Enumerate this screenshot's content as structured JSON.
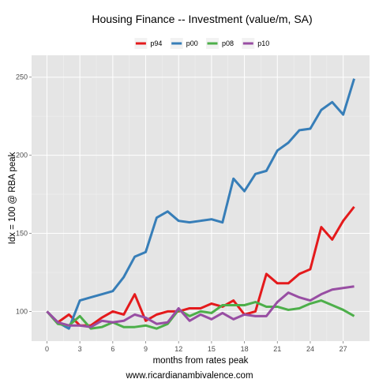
{
  "chart_data": {
    "type": "line",
    "title": "Housing Finance -- Investment (value/m, SA)",
    "xlabel": "months from rates peak",
    "ylabel": "Idx = 100 @ RBA peak",
    "caption": "www.ricardianambivalence.com",
    "x": [
      0,
      1,
      2,
      3,
      4,
      5,
      6,
      7,
      8,
      9,
      10,
      11,
      12,
      13,
      14,
      15,
      16,
      17,
      18,
      19,
      20,
      21,
      22,
      23,
      24,
      25,
      26,
      27,
      28
    ],
    "xlim": [
      -1.4,
      29.4
    ],
    "ylim": [
      81,
      264
    ],
    "x_ticks": [
      0,
      3,
      6,
      9,
      12,
      15,
      18,
      21,
      24,
      27
    ],
    "y_ticks": [
      100,
      150,
      200,
      250
    ],
    "grid": true,
    "legend_position": "top",
    "series": [
      {
        "name": "p94",
        "color": "#e41a1c",
        "values": [
          100,
          93,
          98,
          91,
          91,
          96,
          100,
          98,
          111,
          94,
          98,
          100,
          100,
          102,
          102,
          105,
          103,
          107,
          98,
          100,
          124,
          118,
          118,
          124,
          127,
          154,
          146,
          158,
          167
        ]
      },
      {
        "name": "p00",
        "color": "#377eb8",
        "values": [
          100,
          93,
          89,
          107,
          109,
          111,
          113,
          122,
          135,
          138,
          160,
          164,
          158,
          157,
          158,
          159,
          157,
          185,
          177,
          188,
          190,
          203,
          208,
          216,
          217,
          229,
          234,
          226,
          249
        ]
      },
      {
        "name": "p08",
        "color": "#4daf4a",
        "values": [
          100,
          92,
          91,
          97,
          89,
          90,
          93,
          90,
          90,
          91,
          89,
          92,
          101,
          97,
          100,
          99,
          104,
          104,
          104,
          106,
          103,
          103,
          101,
          102,
          105,
          107,
          104,
          101,
          97
        ]
      },
      {
        "name": "p10",
        "color": "#984ea3",
        "values": [
          100,
          93,
          91,
          91,
          90,
          94,
          93,
          94,
          98,
          96,
          92,
          93,
          102,
          94,
          98,
          95,
          99,
          95,
          98,
          97,
          97,
          106,
          112,
          109,
          107,
          111,
          114,
          115,
          116
        ]
      }
    ]
  }
}
